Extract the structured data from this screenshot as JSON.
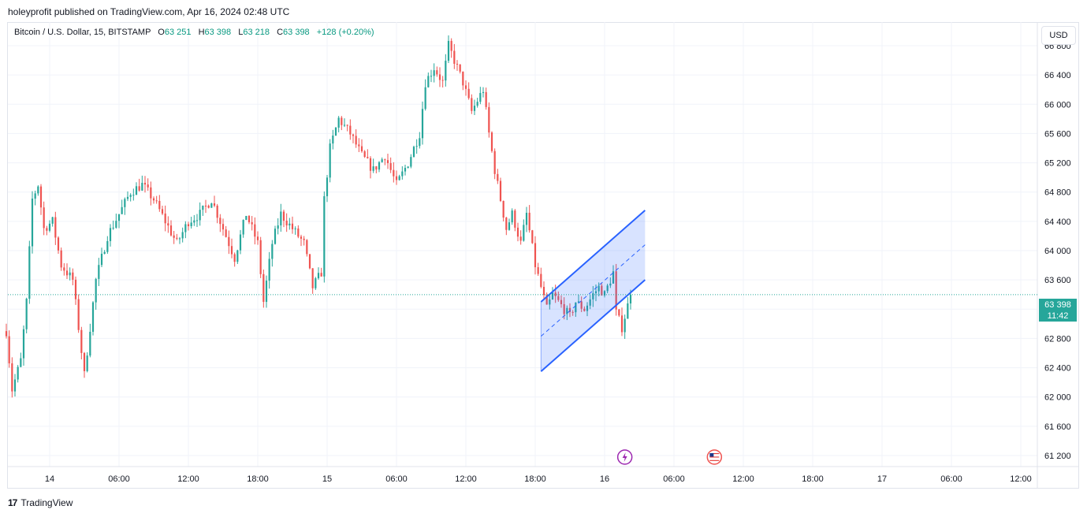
{
  "header": {
    "text": "holeyprofit published on TradingView.com, Apr 16, 2024 02:48 UTC"
  },
  "legend": {
    "symbol": "Bitcoin / U.S. Dollar, 15, BITSTAMP",
    "open_label": "O",
    "open": "63 251",
    "high_label": "H",
    "high": "63 398",
    "low_label": "L",
    "low": "63 218",
    "close_label": "C",
    "close": "63 398",
    "change": "+128 (+0.20%)"
  },
  "currency_button": "USD",
  "last_price": {
    "price": "63 398",
    "countdown": "11:42"
  },
  "footer": {
    "logo": "17",
    "brand": "TradingView"
  },
  "colors": {
    "up": "#26a69a",
    "down": "#ef5350",
    "channel": "#2962ff",
    "grid": "#f0f3fa"
  },
  "chart_data": {
    "type": "candlestick",
    "symbol": "BTCUSD",
    "interval": "15",
    "exchange": "BITSTAMP",
    "y_range": [
      60950,
      67300
    ],
    "y_ticks": [
      61200,
      61600,
      62000,
      62400,
      62800,
      63200,
      63600,
      64000,
      64400,
      64800,
      65200,
      65600,
      66000,
      66400,
      66800
    ],
    "y_tick_labels": [
      "61 200",
      "61 600",
      "62 000",
      "62 400",
      "62 800",
      "63 200",
      "63 600",
      "64 000",
      "64 400",
      "64 800",
      "65 200",
      "65 600",
      "66 000",
      "66 400",
      "66 800"
    ],
    "x_ticks": [
      {
        "label": "14",
        "t": "04-14 00:00"
      },
      {
        "label": "06:00",
        "t": "04-14 06:00"
      },
      {
        "label": "12:00",
        "t": "04-14 12:00"
      },
      {
        "label": "18:00",
        "t": "04-14 18:00"
      },
      {
        "label": "15",
        "t": "04-15 00:00"
      },
      {
        "label": "06:00",
        "t": "04-15 06:00"
      },
      {
        "label": "12:00",
        "t": "04-15 12:00"
      },
      {
        "label": "18:00",
        "t": "04-15 18:00"
      },
      {
        "label": "16",
        "t": "04-16 00:00"
      },
      {
        "label": "06:00",
        "t": "04-16 06:00"
      },
      {
        "label": "12:00",
        "t": "04-16 12:00"
      },
      {
        "label": "18:00",
        "t": "04-16 18:00"
      },
      {
        "label": "17",
        "t": "04-17 00:00"
      },
      {
        "label": "06:00",
        "t": "04-17 06:00"
      },
      {
        "label": "12:00",
        "t": "04-17 12:00"
      }
    ],
    "price_anchors": [
      [
        "04-13 20:15",
        62900
      ],
      [
        "04-13 20:45",
        62100
      ],
      [
        "04-13 21:30",
        62500
      ],
      [
        "04-13 22:00",
        63300
      ],
      [
        "04-13 22:30",
        64700
      ],
      [
        "04-13 23:00",
        64900
      ],
      [
        "04-13 23:30",
        64300
      ],
      [
        "04-14 00:15",
        64400
      ],
      [
        "04-14 01:00",
        63800
      ],
      [
        "04-14 02:00",
        63600
      ],
      [
        "04-14 03:00",
        62300
      ],
      [
        "04-14 04:00",
        63600
      ],
      [
        "04-14 05:00",
        64200
      ],
      [
        "04-14 06:00",
        64500
      ],
      [
        "04-14 07:00",
        64800
      ],
      [
        "04-14 08:00",
        64900
      ],
      [
        "04-14 09:00",
        64700
      ],
      [
        "04-14 10:00",
        64400
      ],
      [
        "04-14 11:00",
        64100
      ],
      [
        "04-14 12:00",
        64400
      ],
      [
        "04-14 13:00",
        64500
      ],
      [
        "04-14 14:00",
        64700
      ],
      [
        "04-14 15:00",
        64300
      ],
      [
        "04-14 16:00",
        63900
      ],
      [
        "04-14 17:00",
        64500
      ],
      [
        "04-14 18:00",
        64100
      ],
      [
        "04-14 18:30",
        63300
      ],
      [
        "04-14 19:15",
        64100
      ],
      [
        "04-14 20:00",
        64500
      ],
      [
        "04-14 21:00",
        64300
      ],
      [
        "04-14 22:00",
        64100
      ],
      [
        "04-14 22:45",
        63500
      ],
      [
        "04-14 23:30",
        63700
      ],
      [
        "04-14 23:45",
        64700
      ],
      [
        "04-15 00:15",
        65400
      ],
      [
        "04-15 01:00",
        65800
      ],
      [
        "04-15 02:00",
        65600
      ],
      [
        "04-15 03:00",
        65300
      ],
      [
        "04-15 04:00",
        65100
      ],
      [
        "04-15 05:00",
        65300
      ],
      [
        "04-15 06:00",
        64900
      ],
      [
        "04-15 07:00",
        65200
      ],
      [
        "04-15 08:00",
        65600
      ],
      [
        "04-15 08:30",
        66300
      ],
      [
        "04-15 09:15",
        66500
      ],
      [
        "04-15 10:00",
        66300
      ],
      [
        "04-15 10:30",
        66800
      ],
      [
        "04-15 11:00",
        66600
      ],
      [
        "04-15 11:45",
        66300
      ],
      [
        "04-15 12:30",
        65900
      ],
      [
        "04-15 13:30",
        66200
      ],
      [
        "04-15 14:00",
        65600
      ],
      [
        "04-15 14:30",
        65100
      ],
      [
        "04-15 15:00",
        64700
      ],
      [
        "04-15 15:30",
        64300
      ],
      [
        "04-15 16:00",
        64500
      ],
      [
        "04-15 16:45",
        64100
      ],
      [
        "04-15 17:15",
        64500
      ],
      [
        "04-15 18:00",
        63800
      ],
      [
        "04-15 18:30",
        63500
      ],
      [
        "04-15 19:00",
        63200
      ],
      [
        "04-15 19:30",
        63400
      ],
      [
        "04-15 20:00",
        63300
      ],
      [
        "04-15 21:00",
        63100
      ],
      [
        "04-15 21:30",
        63300
      ],
      [
        "04-15 22:15",
        63200
      ],
      [
        "04-15 23:00",
        63400
      ],
      [
        "04-15 23:30",
        63500
      ],
      [
        "04-16 00:00",
        63400
      ],
      [
        "04-16 00:45",
        63700
      ],
      [
        "04-16 01:00",
        63150
      ],
      [
        "04-16 01:30",
        62950
      ],
      [
        "04-16 01:45",
        63100
      ],
      [
        "04-16 02:15",
        63398
      ]
    ],
    "channel": {
      "upper": [
        [
          "04-15 18:30",
          63300
        ],
        [
          "04-16 03:30",
          64550
        ]
      ],
      "lower": [
        [
          "04-15 18:30",
          62350
        ],
        [
          "04-16 03:30",
          63600
        ]
      ],
      "mid": [
        [
          "04-15 18:30",
          62830
        ],
        [
          "04-16 03:30",
          64080
        ]
      ]
    },
    "last_price": 63398,
    "event_markers": [
      {
        "type": "bolt",
        "t": "04-16 01:45"
      },
      {
        "type": "us-flag",
        "t": "04-16 09:30"
      }
    ]
  }
}
